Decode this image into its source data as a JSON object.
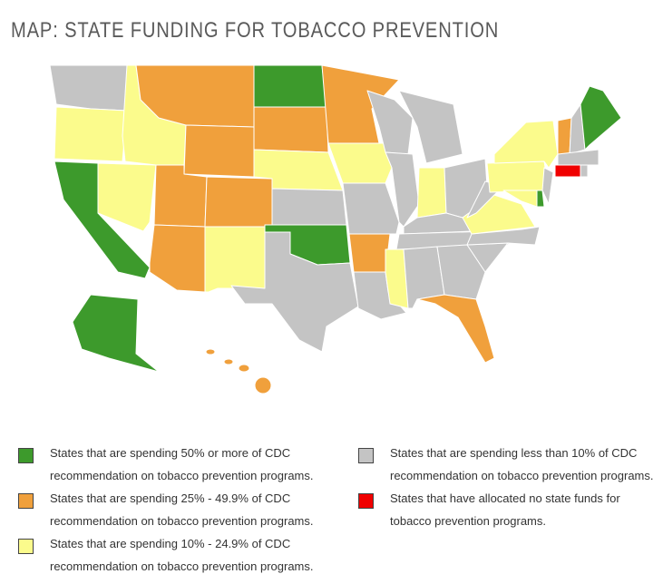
{
  "title": "MAP: STATE FUNDING FOR TOBACCO PREVENTION",
  "legend": [
    {
      "color": "#3d9a2c",
      "label": "States that are spending 50% or more of CDC recommendation on tobacco prevention programs."
    },
    {
      "color": "#f0a03c",
      "label": "States that are spending 25% - 49.9% of CDC recommendation on tobacco prevention programs."
    },
    {
      "color": "#fbfb8c",
      "label": "States that are spending 10% - 24.9% of CDC recommendation on tobacco prevention programs."
    },
    {
      "color": "#c4c4c4",
      "label": "States that are spending less than 10% of CDC recommendation on tobacco prevention programs."
    },
    {
      "color": "#f00000",
      "label": "States that have allocated no state funds for tobacco prevention programs."
    }
  ]
}
